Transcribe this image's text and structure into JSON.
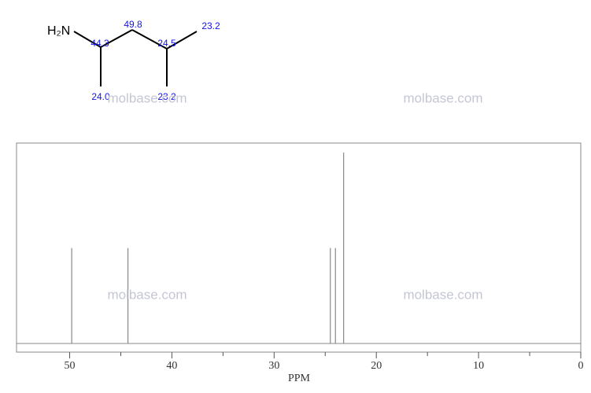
{
  "chart_data": {
    "type": "spectrum",
    "x": [
      49.8,
      44.3,
      24.5,
      24.0,
      23.2
    ],
    "values": [
      1,
      1,
      1,
      1,
      2
    ],
    "color": "#888888",
    "xlim": [
      55.2,
      0
    ],
    "xticks": [
      50,
      40,
      30,
      20,
      10,
      0
    ],
    "xminor_ticks": [
      45,
      35,
      25,
      15,
      5
    ],
    "ylim": [
      0,
      2.1
    ],
    "xlabel": "PPM"
  },
  "structure": {
    "amine": "H₂N",
    "shift_labels": [
      "44.3",
      "49.8",
      "24.5",
      "23.2",
      "24.0",
      "23.2"
    ]
  },
  "watermark": "molbase.com"
}
